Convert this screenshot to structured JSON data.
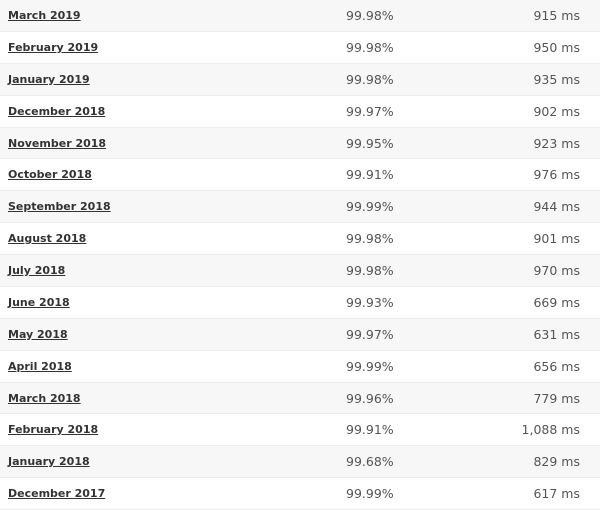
{
  "table": {
    "rows": [
      [
        "March 2019",
        "99.98%",
        "915 ms"
      ],
      [
        "February 2019",
        "99.98%",
        "950 ms"
      ],
      [
        "January 2019",
        "99.98%",
        "935 ms"
      ],
      [
        "December 2018",
        "99.97%",
        "902 ms"
      ],
      [
        "November 2018",
        "99.95%",
        "923 ms"
      ],
      [
        "October 2018",
        "99.91%",
        "976 ms"
      ],
      [
        "September 2018",
        "99.99%",
        "944 ms"
      ],
      [
        "August 2018",
        "99.98%",
        "901 ms"
      ],
      [
        "July 2018",
        "99.98%",
        "970 ms"
      ],
      [
        "June 2018",
        "99.93%",
        "669 ms"
      ],
      [
        "May 2018",
        "99.97%",
        "631 ms"
      ],
      [
        "April 2018",
        "99.99%",
        "656 ms"
      ],
      [
        "March 2018",
        "99.96%",
        "779 ms"
      ],
      [
        "February 2018",
        "99.91%",
        "1,088 ms"
      ],
      [
        "January 2018",
        "99.68%",
        "829 ms"
      ],
      [
        "December 2017",
        "99.99%",
        "617 ms"
      ]
    ]
  }
}
